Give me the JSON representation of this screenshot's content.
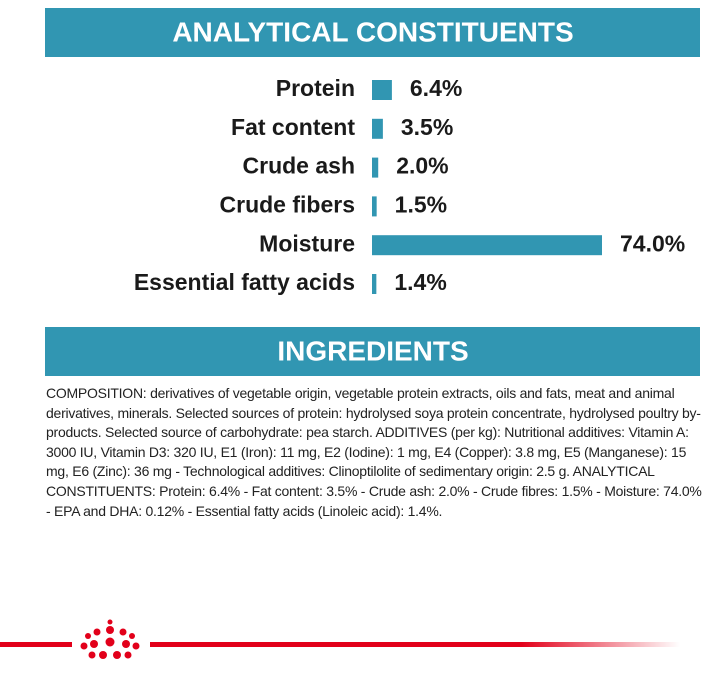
{
  "chart_data": {
    "type": "barh",
    "title": "ANALYTICAL CONSTITUENTS",
    "categories": [
      "Protein",
      "Fat content",
      "Crude ash",
      "Crude fibers",
      "Moisture",
      "Essential fatty acids"
    ],
    "values": [
      6.4,
      3.5,
      2.0,
      1.5,
      74.0,
      1.4
    ],
    "value_labels": [
      "6.4%",
      "3.5%",
      "2.0%",
      "1.5%",
      "74.0%",
      "1.4%"
    ],
    "color": "#3196b2"
  },
  "ingredients": {
    "title": "INGREDIENTS",
    "text": "COMPOSITION: derivatives of vegetable origin, vegetable protein extracts, oils and fats, meat and animal derivatives, minerals. Selected sources of protein: hydrolysed soya protein concentrate, hydrolysed poultry by-products. Selected source of carbohydrate: pea starch. ADDITIVES (per kg): Nutritional additives: Vitamin A: 3000 IU, Vitamin D3: 320 IU, E1 (Iron): 11 mg, E2 (Iodine): 1 mg, E4 (Copper): 3.8 mg, E5 (Manganese): 15 mg, E6 (Zinc): 36 mg - Technological additives: Clinoptilolite of sedimentary origin: 2.5 g. ANALYTICAL CONSTITUENTS: Protein: 6.4% - Fat content: 3.5% - Crude ash: 2.0% - Crude fibres: 1.5% - Moisture: 74.0% - EPA and DHA: 0.12% - Essential fatty acids (Linoleic acid): 1.4%."
  }
}
